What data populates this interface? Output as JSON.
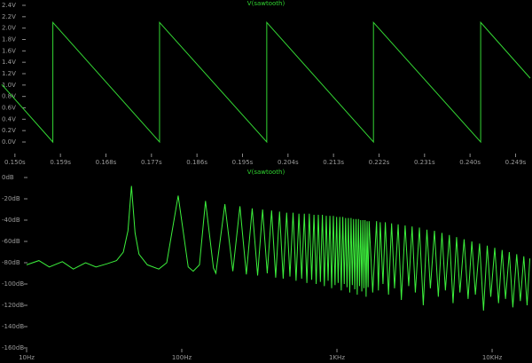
{
  "chart_data": [
    {
      "type": "line",
      "title": "V(sawtooth)",
      "color": "#33d633",
      "x": [
        0.1474,
        0.1575,
        0.1575,
        0.1786,
        0.1786,
        0.1998,
        0.1998,
        0.2209,
        0.2209,
        0.2421,
        0.2421,
        0.2519
      ],
      "values": [
        1.01,
        0.0,
        2.1,
        0.0,
        2.1,
        0.0,
        2.1,
        0.0,
        2.1,
        0.0,
        2.1,
        1.12
      ],
      "xlim": [
        0.1474,
        0.2519
      ],
      "xticks": [
        {
          "value": 0.15,
          "label": "0.150s"
        },
        {
          "value": 0.159,
          "label": "0.159s"
        },
        {
          "value": 0.168,
          "label": "0.168s"
        },
        {
          "value": 0.177,
          "label": "0.177s"
        },
        {
          "value": 0.186,
          "label": "0.186s"
        },
        {
          "value": 0.195,
          "label": "0.195s"
        },
        {
          "value": 0.204,
          "label": "0.204s"
        },
        {
          "value": 0.213,
          "label": "0.213s"
        },
        {
          "value": 0.222,
          "label": "0.222s"
        },
        {
          "value": 0.231,
          "label": "0.231s"
        },
        {
          "value": 0.24,
          "label": "0.240s"
        },
        {
          "value": 0.249,
          "label": "0.249s"
        }
      ],
      "ylim": [
        0.0,
        2.4
      ],
      "yticks": [
        {
          "value": 2.4,
          "label": "2.4V"
        },
        {
          "value": 2.2,
          "label": "2.2V"
        },
        {
          "value": 2.0,
          "label": "2.0V"
        },
        {
          "value": 1.8,
          "label": "1.8V"
        },
        {
          "value": 1.6,
          "label": "1.6V"
        },
        {
          "value": 1.4,
          "label": "1.4V"
        },
        {
          "value": 1.2,
          "label": "1.2V"
        },
        {
          "value": 1.0,
          "label": "1.0V"
        },
        {
          "value": 0.8,
          "label": "0.8V"
        },
        {
          "value": 0.6,
          "label": "0.6V"
        },
        {
          "value": 0.4,
          "label": "0.4V"
        },
        {
          "value": 0.2,
          "label": "0.2V"
        },
        {
          "value": 0.0,
          "label": "0.0V"
        }
      ],
      "grid": false,
      "xscale": "linear"
    },
    {
      "type": "line",
      "title": "V(sawtooth)",
      "color": "#3cf03c",
      "x": [
        10,
        12,
        14,
        17,
        20,
        24,
        28,
        33,
        38,
        42,
        45,
        47.4,
        50,
        53,
        60,
        71.1,
        80,
        94.8,
        110,
        118.5,
        130,
        142.2,
        160,
        165.9,
        189.6,
        213.3,
        237,
        260.7,
        284.4,
        308.1,
        331.8,
        355.5,
        379.2,
        402.9,
        426.6,
        450.3,
        474,
        497.7,
        521.4,
        545.1,
        568.8,
        592.5,
        616.2,
        639.9,
        663.6,
        687.3,
        711,
        734.7,
        758.4,
        782.1,
        805.8,
        829.5,
        853.2,
        876.9,
        900.6,
        924.3,
        948,
        972,
        995.4,
        1018,
        1042.8,
        1066,
        1090.2,
        1114,
        1137.6,
        1161,
        1185,
        1209,
        1232.4,
        1256,
        1279.8,
        1303,
        1327.2,
        1351,
        1374.6,
        1398,
        1422,
        1446,
        1469.4,
        1493,
        1516.8,
        1541,
        1564.2,
        1588,
        1611.6,
        1700,
        1800,
        1850,
        1900,
        1980,
        2050,
        2150,
        2250,
        2350,
        2480,
        2600,
        2750,
        2900,
        3050,
        3200,
        3400,
        3600,
        3800,
        4000,
        4250,
        4500,
        4750,
        5000,
        5300,
        5600,
        5900,
        6200,
        6600,
        7000,
        7400,
        7800,
        8300,
        8800,
        9300,
        9800,
        10400,
        11000,
        11600,
        12200,
        12900,
        13600,
        14400,
        15200,
        16000,
        16800,
        17500
      ],
      "values": [
        -82,
        -78,
        -84,
        -79,
        -86,
        -80,
        -84,
        -81,
        -78,
        -70,
        -50,
        -8,
        -52,
        -72,
        -82,
        -86,
        -80,
        -17,
        -84,
        -88,
        -82,
        -22,
        -85,
        -90,
        -25,
        -88,
        -27,
        -91,
        -29,
        -92,
        -30,
        -90,
        -31,
        -94,
        -32,
        -95,
        -33,
        -93,
        -33,
        -97,
        -34,
        -95,
        -34,
        -99,
        -34,
        -96,
        -35,
        -100,
        -35,
        -98,
        -35,
        -102,
        -36,
        -97,
        -36,
        -104,
        -36,
        -101,
        -37,
        -99,
        -37,
        -106,
        -37,
        -100,
        -38,
        -103,
        -38,
        -108,
        -38,
        -101,
        -39,
        -105,
        -39,
        -110,
        -39,
        -102,
        -40,
        -107,
        -40,
        -104,
        -40,
        -112,
        -41,
        -103,
        -41,
        -108,
        -41,
        -106,
        -42,
        -100,
        -42,
        -110,
        -43,
        -104,
        -44,
        -115,
        -45,
        -102,
        -46,
        -108,
        -47,
        -120,
        -49,
        -104,
        -50,
        -112,
        -52,
        -106,
        -54,
        -118,
        -56,
        -108,
        -58,
        -114,
        -60,
        -110,
        -62,
        -125,
        -64,
        -112,
        -66,
        -118,
        -68,
        -114,
        -70,
        -122,
        -72,
        -116,
        -74,
        -120,
        -76
      ],
      "xlim": [
        10,
        17600
      ],
      "xticks": [
        {
          "value": 10,
          "label": "10Hz"
        },
        {
          "value": 100,
          "label": "100Hz"
        },
        {
          "value": 1000,
          "label": "1KHz"
        },
        {
          "value": 10000,
          "label": "10KHz"
        }
      ],
      "ylim": [
        -160,
        0
      ],
      "yticks": [
        {
          "value": 0,
          "label": "0dB"
        },
        {
          "value": -20,
          "label": "-20dB"
        },
        {
          "value": -40,
          "label": "-40dB"
        },
        {
          "value": -60,
          "label": "-60dB"
        },
        {
          "value": -80,
          "label": "-80dB"
        },
        {
          "value": -100,
          "label": "-100dB"
        },
        {
          "value": -120,
          "label": "-120dB"
        },
        {
          "value": -140,
          "label": "-140dB"
        },
        {
          "value": -160,
          "label": "-160dB"
        }
      ],
      "grid": false,
      "xscale": "log"
    }
  ]
}
